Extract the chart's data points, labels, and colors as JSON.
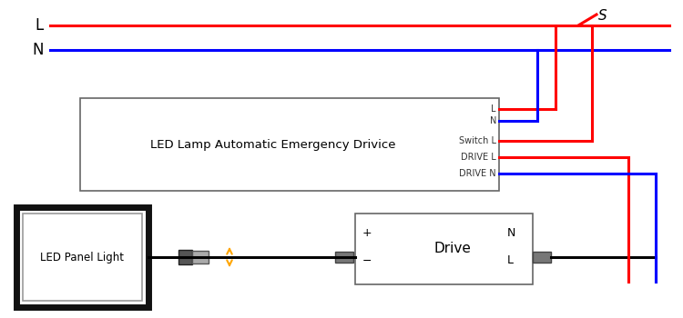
{
  "bg_color": "#ffffff",
  "L_label": "L",
  "N_label": "N",
  "S_label": "S",
  "red_color": "#ff0000",
  "blue_color": "#0000ff",
  "black_color": "#000000",
  "orange_color": "#ffa500",
  "box_emergency_label": "LED Lamp Automatic Emergency Drivice",
  "box_drive_label": "Drive",
  "box_panel_label": "LED Panel Light",
  "terminal_labels": [
    "L",
    "N",
    "Switch L",
    "DRIVE L",
    "DRIVE N"
  ],
  "drive_labels_left": [
    "+",
    "-"
  ],
  "drive_labels_right": [
    "N",
    "L"
  ]
}
